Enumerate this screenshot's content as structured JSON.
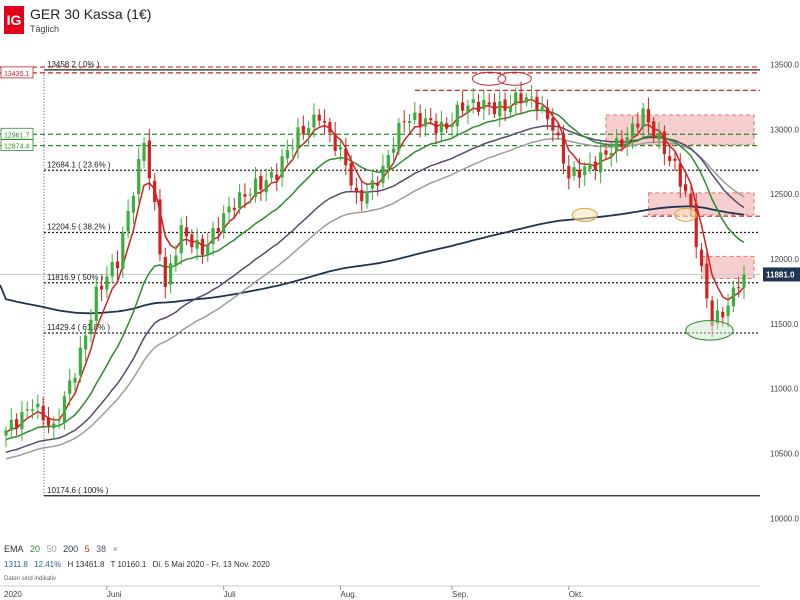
{
  "header": {
    "logo": "IG",
    "title": "GER 30 Kassa (1€)",
    "subtitle": "Täglich"
  },
  "legend": {
    "label": "EMA",
    "periods": [
      {
        "text": "20",
        "color": "#2e8b2e"
      },
      {
        "text": "50",
        "color": "#9e9e9e"
      },
      {
        "text": "200",
        "color": "#1f3550"
      },
      {
        "text": "5",
        "color": "#d02020"
      },
      {
        "text": "38",
        "color": "#5a4a6e"
      }
    ],
    "close_icon": "×"
  },
  "stats": {
    "change": "1311.8",
    "change_pct": "12.41%",
    "high": "H 13461.8",
    "low": "T 10160.1",
    "range": "Di. 5 Mai 2020 - Fr. 13 Nov. 2020"
  },
  "note": "Daten sind indikativ",
  "current_price": {
    "label": "11881.0",
    "value": 11881,
    "color": "#1f3550"
  },
  "colors": {
    "up": "#3cae3c",
    "down": "#d62020",
    "resistance": "#c62828",
    "support": "#2e8b2e",
    "grid": "#222222"
  },
  "chart_data": {
    "type": "candlestick",
    "x_labels": [
      {
        "label": "2020",
        "index": 0
      },
      {
        "label": "Juni",
        "index": 19
      },
      {
        "label": "Juli",
        "index": 41
      },
      {
        "label": "Aug.",
        "index": 63
      },
      {
        "label": "Sep.",
        "index": 84
      },
      {
        "label": "Okt.",
        "index": 106
      }
    ],
    "y_ticks": [
      10000,
      10500,
      11000,
      11500,
      12000,
      12500,
      13000,
      13500
    ],
    "ylim": [
      9960,
      13560
    ],
    "n_days": 140,
    "levels": [
      {
        "label": "13458.2 ( 0% )",
        "value": 13458.2,
        "style": "solid",
        "color": "#222222"
      },
      {
        "label": "12684.1 ( 23.6% )",
        "value": 12684.1,
        "style": "dotted",
        "color": "#222222"
      },
      {
        "label": "12204.5 ( 38.2% )",
        "value": 12204.5,
        "style": "dotted",
        "color": "#222222"
      },
      {
        "label": "11816.9 ( 50% )",
        "value": 11816.9,
        "style": "dotted",
        "color": "#222222"
      },
      {
        "label": "11429.4 ( 61.8% )",
        "value": 11429.4,
        "style": "dotted",
        "color": "#222222"
      },
      {
        "label": "10174.6 ( 100% )",
        "value": 10174.6,
        "style": "solid",
        "color": "#222222"
      }
    ],
    "side_labels": [
      {
        "label": "13435.1",
        "value": 13435.1,
        "color": "#c62828"
      },
      {
        "label": "12961.7",
        "value": 12961.7,
        "color": "#2e8b2e"
      },
      {
        "label": "12874.4",
        "value": 12874.4,
        "color": "#2e8b2e"
      }
    ],
    "lines": [
      {
        "value": 13480,
        "style": "dashed",
        "color": "#c62828",
        "from": 0,
        "to": 139
      },
      {
        "value": 13435.1,
        "style": "dashed",
        "color": "#c62828",
        "from": 0,
        "to": 139
      },
      {
        "value": 13300,
        "style": "dashed",
        "color": "#c62828",
        "from": 77,
        "to": 139
      },
      {
        "value": 12961.7,
        "style": "dashed",
        "color": "#2e8b2e",
        "from": 0,
        "to": 139
      },
      {
        "value": 12874.4,
        "style": "dashed",
        "color": "#2e8b2e",
        "from": 0,
        "to": 139
      },
      {
        "value": 12330,
        "style": "dashed",
        "color": "#c62828",
        "from": 120,
        "to": 139
      },
      {
        "value": 11881,
        "style": "solid",
        "color": "#cccccc",
        "from": 0,
        "to": 139
      }
    ],
    "zones": [
      {
        "x0": 113,
        "x1": 139,
        "y0": 12880,
        "y1": 13110,
        "color": "#e57373"
      },
      {
        "x0": 121,
        "x1": 139,
        "y0": 12340,
        "y1": 12510,
        "color": "#e57373"
      },
      {
        "x0": 131,
        "x1": 139,
        "y0": 11850,
        "y1": 12020,
        "color": "#e57373"
      }
    ],
    "ellipses": [
      {
        "x": 91,
        "y": 13390,
        "rx": 2.4,
        "ry": 50,
        "color": "#c62828",
        "fill": "none"
      },
      {
        "x": 95.8,
        "y": 13390,
        "rx": 2.4,
        "ry": 50,
        "color": "#c62828",
        "fill": "none"
      },
      {
        "x": 109,
        "y": 12340,
        "rx": 1.6,
        "ry": 50,
        "color": "#e0a040",
        "fill": "#fbe3b8"
      },
      {
        "x": 128,
        "y": 12340,
        "rx": 1.3,
        "ry": 50,
        "color": "#e0a040",
        "fill": "#fbe3b8"
      },
      {
        "x": 132.5,
        "y": 11450,
        "rx": 3.7,
        "ry": 75,
        "color": "#2e8b2e",
        "fill": "#cfe8cf"
      }
    ],
    "anchors": [
      [
        0,
        10650
      ],
      [
        5,
        10920
      ],
      [
        9,
        10650
      ],
      [
        13,
        11150
      ],
      [
        17,
        11750
      ],
      [
        21,
        11950
      ],
      [
        24,
        12550
      ],
      [
        26,
        12950
      ],
      [
        28,
        12400
      ],
      [
        30,
        11750
      ],
      [
        33,
        12200
      ],
      [
        37,
        12100
      ],
      [
        41,
        12300
      ],
      [
        44,
        12450
      ],
      [
        47,
        12600
      ],
      [
        51,
        12650
      ],
      [
        55,
        12950
      ],
      [
        59,
        13150
      ],
      [
        61,
        12950
      ],
      [
        64,
        12700
      ],
      [
        66,
        12450
      ],
      [
        68,
        12550
      ],
      [
        71,
        12700
      ],
      [
        75,
        13050
      ],
      [
        79,
        13100
      ],
      [
        83,
        13000
      ],
      [
        86,
        13150
      ],
      [
        90,
        13230
      ],
      [
        94,
        13150
      ],
      [
        97,
        13220
      ],
      [
        100,
        13230
      ],
      [
        103,
        13050
      ],
      [
        106,
        12600
      ],
      [
        109,
        12680
      ],
      [
        113,
        12850
      ],
      [
        117,
        12900
      ],
      [
        120,
        13120
      ],
      [
        123,
        12950
      ],
      [
        126,
        12700
      ],
      [
        129,
        12350
      ],
      [
        131,
        11900
      ],
      [
        133,
        11550
      ],
      [
        136,
        11650
      ],
      [
        139,
        11881
      ]
    ],
    "series": [
      {
        "name": "EMA 5",
        "period": 5,
        "color": "#d02020"
      },
      {
        "name": "EMA 20",
        "period": 20,
        "color": "#2e8b2e"
      },
      {
        "name": "EMA 38",
        "period": 38,
        "color": "#5a4a6e"
      },
      {
        "name": "EMA 50",
        "period": 50,
        "color": "#9e9e9e"
      },
      {
        "name": "EMA 200",
        "period": 200,
        "color": "#1f3550"
      }
    ]
  }
}
